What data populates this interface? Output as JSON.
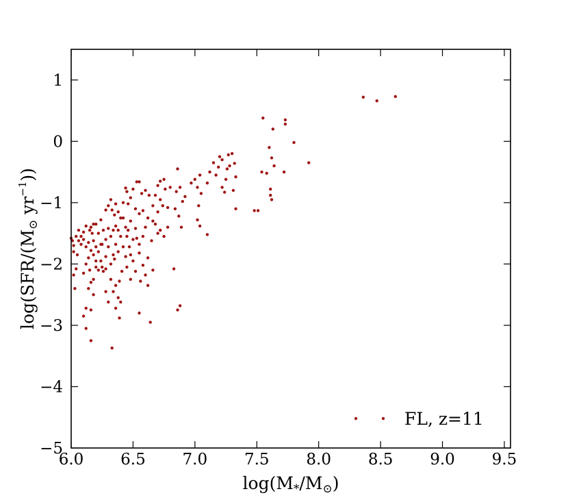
{
  "chart_data": {
    "type": "scatter",
    "xlabel_parts": {
      "prefix": "log(M",
      "sub1": "*",
      "mid": "/M",
      "sub2": "⊙",
      "suffix": ")"
    },
    "ylabel_parts": {
      "prefix": "log(SFR/(M",
      "sub": "⊙",
      "mid": " yr",
      "sup": "−1",
      "suffix": "))"
    },
    "xlim": [
      6.0,
      9.55
    ],
    "ylim": [
      -5,
      1.5
    ],
    "xticks": [
      6.0,
      6.5,
      7.0,
      7.5,
      8.0,
      8.5,
      9.0,
      9.5
    ],
    "xtick_labels": [
      "6.0",
      "6.5",
      "7.0",
      "7.5",
      "8.0",
      "8.5",
      "9.0",
      "9.5"
    ],
    "yticks": [
      1,
      0,
      -1,
      -2,
      -3,
      -4,
      -5
    ],
    "ytick_labels": [
      "1",
      "0",
      "−1",
      "−2",
      "−3",
      "−4",
      "−5"
    ],
    "grid": false,
    "legend_position": "bottom-right",
    "marker_color": "#a01515",
    "series": [
      {
        "name": "FL, z=11",
        "points": [
          [
            8.36,
            0.72
          ],
          [
            8.47,
            0.66
          ],
          [
            8.62,
            0.73
          ],
          [
            7.55,
            0.38
          ],
          [
            7.63,
            0.2
          ],
          [
            7.73,
            0.35
          ],
          [
            7.73,
            0.28
          ],
          [
            7.8,
            -0.02
          ],
          [
            7.92,
            -0.35
          ],
          [
            7.6,
            -0.1
          ],
          [
            7.62,
            -0.27
          ],
          [
            7.64,
            -0.4
          ],
          [
            7.58,
            -0.52
          ],
          [
            7.54,
            -0.5
          ],
          [
            7.72,
            -0.5
          ],
          [
            7.61,
            -0.78
          ],
          [
            7.61,
            -0.88
          ],
          [
            7.62,
            -0.95
          ],
          [
            7.48,
            -1.13
          ],
          [
            7.51,
            -1.13
          ],
          [
            7.3,
            -0.2
          ],
          [
            7.27,
            -0.22
          ],
          [
            7.22,
            -0.3
          ],
          [
            7.2,
            -0.25
          ],
          [
            7.32,
            -0.36
          ],
          [
            7.28,
            -0.4
          ],
          [
            7.26,
            -0.45
          ],
          [
            7.19,
            -0.42
          ],
          [
            7.25,
            -0.62
          ],
          [
            7.33,
            -0.58
          ],
          [
            7.22,
            -0.75
          ],
          [
            7.31,
            -0.8
          ],
          [
            7.24,
            -0.83
          ],
          [
            7.33,
            -1.1
          ],
          [
            7.15,
            -0.35
          ],
          [
            7.12,
            -0.5
          ],
          [
            7.17,
            -0.55
          ],
          [
            7.1,
            -0.68
          ],
          [
            7.04,
            -0.55
          ],
          [
            7.0,
            -0.62
          ],
          [
            7.02,
            -0.75
          ],
          [
            7.05,
            -0.85
          ],
          [
            6.97,
            -0.68
          ],
          [
            7.03,
            -1.05
          ],
          [
            7.02,
            -1.28
          ],
          [
            7.04,
            -1.38
          ],
          [
            7.1,
            -1.52
          ],
          [
            6.86,
            -0.45
          ],
          [
            6.88,
            -0.75
          ],
          [
            6.92,
            -0.9
          ],
          [
            6.8,
            -0.75
          ],
          [
            6.75,
            -0.62
          ],
          [
            6.76,
            -0.78
          ],
          [
            6.85,
            -0.82
          ],
          [
            6.9,
            -0.98
          ],
          [
            6.84,
            -1.1
          ],
          [
            6.87,
            -1.22
          ],
          [
            6.89,
            -1.4
          ],
          [
            6.83,
            -2.08
          ],
          [
            6.86,
            -2.75
          ],
          [
            6.88,
            -2.68
          ],
          [
            6.72,
            -0.65
          ],
          [
            6.7,
            -0.72
          ],
          [
            6.68,
            -0.88
          ],
          [
            6.72,
            -0.95
          ],
          [
            6.74,
            -1.05
          ],
          [
            6.78,
            -1.08
          ],
          [
            6.66,
            -1.05
          ],
          [
            6.63,
            -0.88
          ],
          [
            6.6,
            -0.8
          ],
          [
            6.57,
            -0.85
          ],
          [
            6.55,
            -0.66
          ],
          [
            6.53,
            -0.66
          ],
          [
            6.5,
            -0.78
          ],
          [
            6.48,
            -0.92
          ],
          [
            6.45,
            -0.82
          ],
          [
            6.44,
            -0.76
          ],
          [
            6.42,
            -1.0
          ],
          [
            6.46,
            -1.02
          ],
          [
            6.52,
            -1.1
          ],
          [
            6.58,
            -1.13
          ],
          [
            6.55,
            -1.18
          ],
          [
            6.62,
            -1.25
          ],
          [
            6.66,
            -1.3
          ],
          [
            6.72,
            -1.45
          ],
          [
            6.75,
            -1.55
          ],
          [
            6.78,
            -1.4
          ],
          [
            6.7,
            -1.5
          ],
          [
            6.65,
            -1.62
          ],
          [
            6.6,
            -1.4
          ],
          [
            6.58,
            -1.55
          ],
          [
            6.55,
            -1.68
          ],
          [
            6.52,
            -1.42
          ],
          [
            6.5,
            -1.6
          ],
          [
            6.48,
            -1.3
          ],
          [
            6.46,
            -1.45
          ],
          [
            6.42,
            -1.25
          ],
          [
            6.4,
            -1.55
          ],
          [
            6.38,
            -1.45
          ],
          [
            6.36,
            -1.38
          ],
          [
            6.35,
            -1.2
          ],
          [
            6.33,
            -1.12
          ],
          [
            6.3,
            -1.05
          ],
          [
            6.28,
            -1.12
          ],
          [
            6.32,
            -0.95
          ],
          [
            6.36,
            -1.02
          ],
          [
            6.38,
            -1.15
          ],
          [
            6.4,
            -1.25
          ],
          [
            6.44,
            -1.4
          ],
          [
            6.47,
            -1.72
          ],
          [
            6.44,
            -1.88
          ],
          [
            6.5,
            -1.95
          ],
          [
            6.55,
            -1.82
          ],
          [
            6.58,
            -2.02
          ],
          [
            6.62,
            -1.9
          ],
          [
            6.6,
            -2.18
          ],
          [
            6.66,
            -2.1
          ],
          [
            6.62,
            -2.35
          ],
          [
            6.64,
            -2.95
          ],
          [
            6.55,
            -2.8
          ],
          [
            6.52,
            -2.12
          ],
          [
            6.45,
            -2.05
          ],
          [
            6.41,
            -2.12
          ],
          [
            6.39,
            -2.28
          ],
          [
            6.36,
            -2.35
          ],
          [
            6.32,
            -2.25
          ],
          [
            6.34,
            -2.45
          ],
          [
            6.38,
            -2.55
          ],
          [
            6.4,
            -2.62
          ],
          [
            6.36,
            -2.72
          ],
          [
            6.39,
            -2.88
          ],
          [
            6.33,
            -3.37
          ],
          [
            6.3,
            -2.62
          ],
          [
            6.28,
            -2.45
          ],
          [
            6.25,
            -2.05
          ],
          [
            6.22,
            -2.1
          ],
          [
            6.2,
            -2.05
          ],
          [
            6.18,
            -2.25
          ],
          [
            6.16,
            -2.3
          ],
          [
            6.14,
            -2.4
          ],
          [
            6.12,
            -2.72
          ],
          [
            6.1,
            -2.85
          ],
          [
            6.16,
            -2.75
          ],
          [
            6.12,
            -3.05
          ],
          [
            6.16,
            -3.25
          ],
          [
            6.18,
            -2.5
          ],
          [
            6.22,
            -1.8
          ],
          [
            6.25,
            -1.68
          ],
          [
            6.28,
            -1.88
          ],
          [
            6.3,
            -1.72
          ],
          [
            6.32,
            -1.55
          ],
          [
            6.34,
            -1.45
          ],
          [
            6.36,
            -1.68
          ],
          [
            6.38,
            -1.8
          ],
          [
            6.35,
            -1.92
          ],
          [
            6.32,
            -2.0
          ],
          [
            6.28,
            -2.08
          ],
          [
            6.26,
            -2.12
          ],
          [
            6.24,
            -1.95
          ],
          [
            6.2,
            -1.72
          ],
          [
            6.18,
            -1.62
          ],
          [
            6.17,
            -1.5
          ],
          [
            6.16,
            -1.4
          ],
          [
            6.18,
            -1.35
          ],
          [
            6.2,
            -1.35
          ],
          [
            6.15,
            -1.45
          ],
          [
            6.12,
            -1.38
          ],
          [
            6.1,
            -1.48
          ],
          [
            6.08,
            -1.55
          ],
          [
            6.06,
            -1.45
          ],
          [
            6.1,
            -1.6
          ],
          [
            6.12,
            -1.72
          ],
          [
            6.14,
            -1.65
          ],
          [
            6.16,
            -1.78
          ],
          [
            6.14,
            -1.9
          ],
          [
            6.12,
            -2.0
          ],
          [
            6.15,
            -2.1
          ],
          [
            6.18,
            -1.85
          ],
          [
            6.2,
            -1.95
          ],
          [
            6.1,
            -2.15
          ],
          [
            6.04,
            -2.08
          ],
          [
            6.02,
            -2.18
          ],
          [
            6.03,
            -2.4
          ],
          [
            6.02,
            -1.7
          ],
          [
            6.01,
            -1.62
          ],
          [
            6.0,
            -1.58
          ],
          [
            6.04,
            -1.55
          ],
          [
            6.06,
            -1.62
          ],
          [
            6.08,
            -1.68
          ],
          [
            6.02,
            -1.8
          ],
          [
            6.05,
            -1.85
          ],
          [
            6.26,
            -1.45
          ],
          [
            6.24,
            -1.28
          ],
          [
            6.22,
            -1.5
          ],
          [
            6.3,
            -1.42
          ],
          [
            6.42,
            -1.72
          ],
          [
            6.48,
            -1.85
          ],
          [
            6.53,
            -1.58
          ],
          [
            6.68,
            -1.35
          ],
          [
            6.7,
            -1.15
          ],
          [
            6.45,
            -1.55
          ],
          [
            6.34,
            -1.85
          ],
          [
            6.28,
            -1.6
          ],
          [
            6.24,
            -1.68
          ],
          [
            6.56,
            -2.28
          ],
          [
            6.48,
            -2.25
          ]
        ]
      }
    ]
  }
}
